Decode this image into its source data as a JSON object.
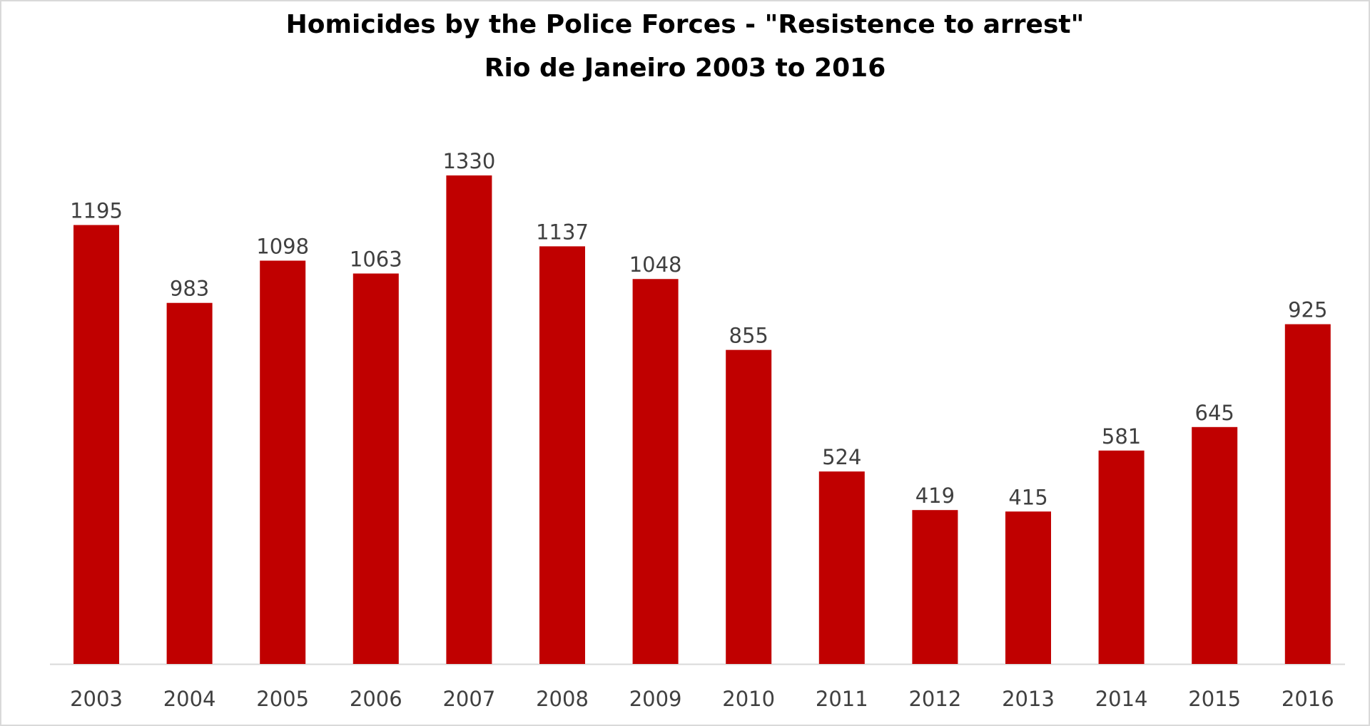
{
  "chart_data": {
    "type": "bar",
    "title": "Homicides by the Police Forces - \"Resistence to arrest\"",
    "subtitle": "Rio de Janeiro 2003 to 2016",
    "categories": [
      "2003",
      "2004",
      "2005",
      "2006",
      "2007",
      "2008",
      "2009",
      "2010",
      "2011",
      "2012",
      "2013",
      "2014",
      "2015",
      "2016"
    ],
    "values": [
      1195,
      983,
      1098,
      1063,
      1330,
      1137,
      1048,
      855,
      524,
      419,
      415,
      581,
      645,
      925
    ],
    "xlabel": "",
    "ylabel": "",
    "ylim": [
      0,
      1330
    ],
    "grid": false,
    "legend": "none",
    "colors": {
      "bar": "#C00000",
      "label": "#404040",
      "axis": "#d9d9d9"
    }
  }
}
